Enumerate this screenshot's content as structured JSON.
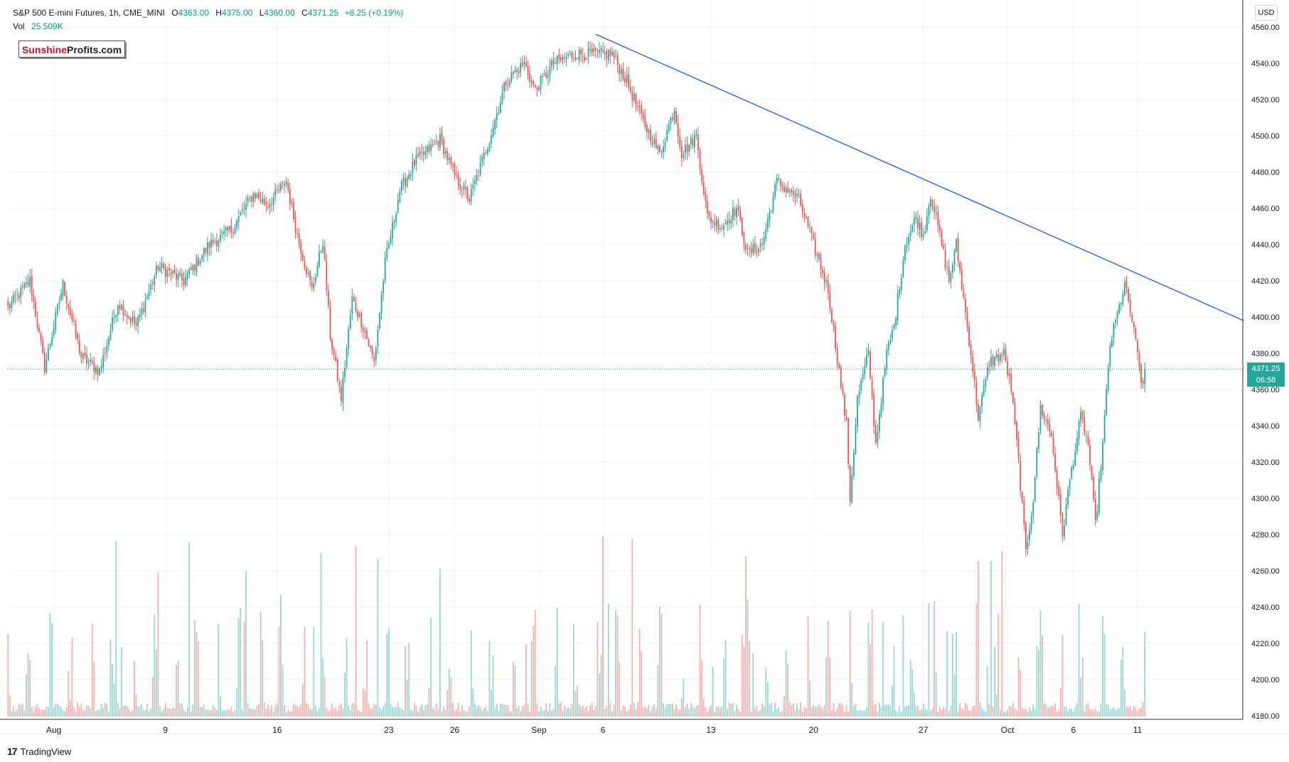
{
  "header": {
    "symbol": "S&P 500 E-mini Futures, 1h, CME_MINI",
    "open_label": "O",
    "open": "4363.00",
    "high_label": "H",
    "high": "4375.00",
    "low_label": "L",
    "low": "4360.00",
    "close_label": "C",
    "close": "4371.25",
    "change": "+8.25 (+0.19%)",
    "vol_label": "Vol",
    "vol": "25.509K"
  },
  "watermark": {
    "part1": "Sunshine",
    "part2": "Profits.com"
  },
  "currency": "USD",
  "last_price": {
    "value": "4371.25",
    "countdown": "06:58"
  },
  "brand": {
    "logo": "17",
    "name": "TradingView"
  },
  "colors": {
    "up": "#26a69a",
    "down": "#ef5350",
    "trendline": "#2962ff",
    "grid": "#f0f3fa",
    "priceline": "#26a69a"
  },
  "chart_data": {
    "type": "candlestick",
    "title": "S&P 500 E-mini Futures, 1h, CME_MINI",
    "ylim": [
      4180,
      4560
    ],
    "y_ticks": [
      "4560.00",
      "4540.00",
      "4520.00",
      "4500.00",
      "4480.00",
      "4460.00",
      "4440.00",
      "4420.00",
      "4400.00",
      "4380.00",
      "4360.00",
      "4340.00",
      "4320.00",
      "4300.00",
      "4280.00",
      "4260.00",
      "4240.00",
      "4220.00",
      "4200.00",
      "4180.00"
    ],
    "x_ticks": [
      {
        "label": "Aug",
        "bar": 25
      },
      {
        "label": "9",
        "bar": 86
      },
      {
        "label": "16",
        "bar": 147
      },
      {
        "label": "23",
        "bar": 208
      },
      {
        "label": "26",
        "bar": 244
      },
      {
        "label": "Sep",
        "bar": 290
      },
      {
        "label": "6",
        "bar": 325
      },
      {
        "label": "13",
        "bar": 384
      },
      {
        "label": "20",
        "bar": 440
      },
      {
        "label": "27",
        "bar": 500
      },
      {
        "label": "Oct",
        "bar": 546
      },
      {
        "label": "6",
        "bar": 582
      },
      {
        "label": "11",
        "bar": 617
      }
    ],
    "bar_count": 675,
    "last_bar": 621,
    "last_close": 4371.25,
    "anchors": [
      [
        0,
        4405
      ],
      [
        12,
        4420
      ],
      [
        20,
        4372
      ],
      [
        30,
        4418
      ],
      [
        40,
        4378
      ],
      [
        50,
        4370
      ],
      [
        60,
        4408
      ],
      [
        70,
        4395
      ],
      [
        82,
        4428
      ],
      [
        96,
        4420
      ],
      [
        110,
        4440
      ],
      [
        122,
        4448
      ],
      [
        134,
        4468
      ],
      [
        142,
        4462
      ],
      [
        152,
        4475
      ],
      [
        158,
        4445
      ],
      [
        166,
        4415
      ],
      [
        172,
        4442
      ],
      [
        176,
        4390
      ],
      [
        182,
        4355
      ],
      [
        188,
        4410
      ],
      [
        194,
        4395
      ],
      [
        200,
        4375
      ],
      [
        206,
        4430
      ],
      [
        214,
        4470
      ],
      [
        222,
        4485
      ],
      [
        236,
        4498
      ],
      [
        244,
        4478
      ],
      [
        252,
        4465
      ],
      [
        262,
        4495
      ],
      [
        272,
        4530
      ],
      [
        282,
        4540
      ],
      [
        288,
        4525
      ],
      [
        298,
        4540
      ],
      [
        310,
        4545
      ],
      [
        322,
        4545
      ],
      [
        330,
        4545
      ],
      [
        338,
        4530
      ],
      [
        346,
        4510
      ],
      [
        356,
        4490
      ],
      [
        364,
        4515
      ],
      [
        368,
        4490
      ],
      [
        376,
        4500
      ],
      [
        382,
        4455
      ],
      [
        390,
        4450
      ],
      [
        398,
        4460
      ],
      [
        404,
        4435
      ],
      [
        412,
        4440
      ],
      [
        420,
        4475
      ],
      [
        432,
        4465
      ],
      [
        440,
        4440
      ],
      [
        448,
        4415
      ],
      [
        452,
        4385
      ],
      [
        458,
        4340
      ],
      [
        460,
        4300
      ],
      [
        464,
        4355
      ],
      [
        470,
        4380
      ],
      [
        474,
        4330
      ],
      [
        480,
        4380
      ],
      [
        484,
        4395
      ],
      [
        490,
        4440
      ],
      [
        496,
        4455
      ],
      [
        500,
        4445
      ],
      [
        504,
        4468
      ],
      [
        508,
        4450
      ],
      [
        514,
        4420
      ],
      [
        518,
        4440
      ],
      [
        522,
        4410
      ],
      [
        526,
        4380
      ],
      [
        530,
        4345
      ],
      [
        536,
        4375
      ],
      [
        544,
        4380
      ],
      [
        548,
        4360
      ],
      [
        552,
        4320
      ],
      [
        556,
        4270
      ],
      [
        560,
        4300
      ],
      [
        564,
        4350
      ],
      [
        570,
        4335
      ],
      [
        576,
        4280
      ],
      [
        580,
        4310
      ],
      [
        586,
        4345
      ],
      [
        590,
        4330
      ],
      [
        594,
        4285
      ],
      [
        598,
        4330
      ],
      [
        602,
        4385
      ],
      [
        610,
        4418
      ],
      [
        614,
        4398
      ],
      [
        620,
        4360
      ],
      [
        621,
        4371.25
      ]
    ],
    "trendline": [
      [
        321,
        4556
      ],
      [
        675,
        4398
      ]
    ]
  }
}
